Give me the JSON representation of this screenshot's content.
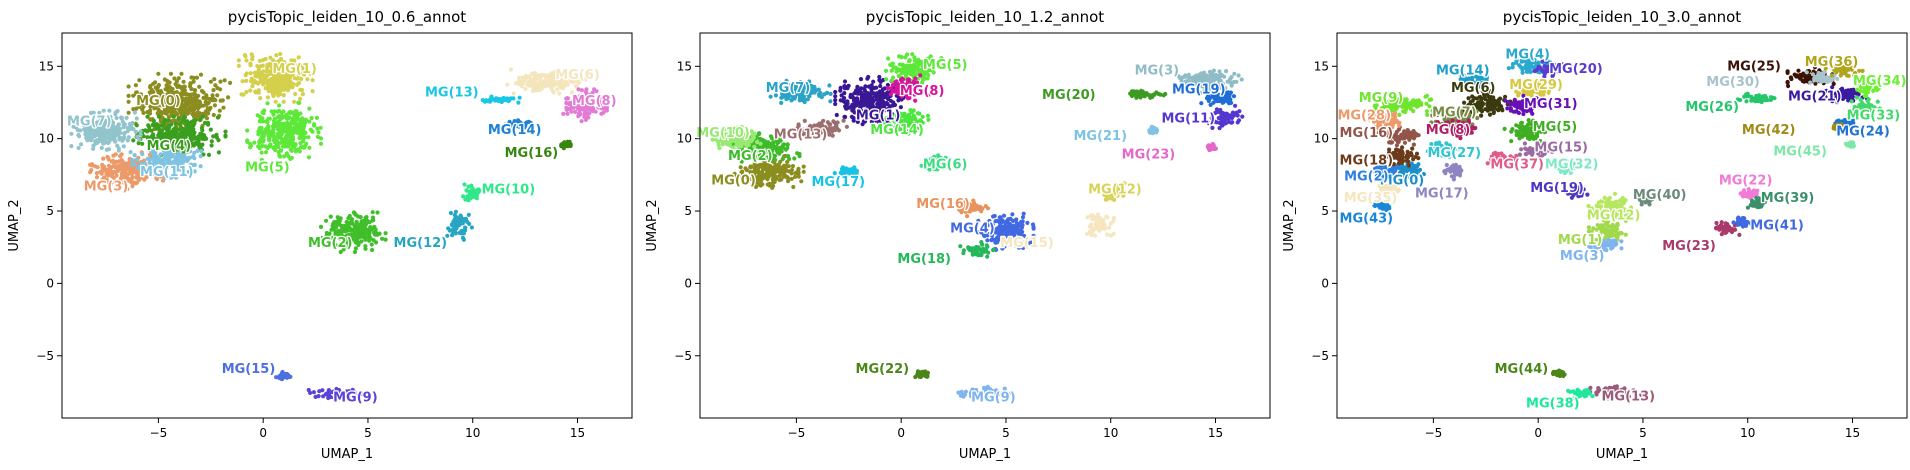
{
  "chart_data": [
    {
      "type": "scatter",
      "title": "pycisTopic_leiden_10_0.6_annot",
      "xlabel": "UMAP_1",
      "ylabel": "UMAP_2",
      "xlim": [
        -9.6,
        17.6
      ],
      "ylim": [
        -9.3,
        17.3
      ],
      "xticks": [
        -5,
        0,
        5,
        10,
        15
      ],
      "yticks": [
        -5,
        0,
        5,
        10,
        15
      ],
      "grid": false,
      "clusters": [
        {
          "name": "MG(0)",
          "x": -4.0,
          "y": 12.5,
          "rx": 2.2,
          "ry": 1.8,
          "color": "#8b8e1f",
          "lx": -5.0,
          "ly": 12.6
        },
        {
          "name": "MG(1)",
          "x": 0.6,
          "y": 14.2,
          "rx": 1.6,
          "ry": 1.5,
          "color": "#d4d04c",
          "lx": 1.5,
          "ly": 14.8
        },
        {
          "name": "MG(2)",
          "x": 4.3,
          "y": 3.6,
          "rx": 1.4,
          "ry": 1.3,
          "color": "#3fbf29",
          "lx": 3.2,
          "ly": 2.8
        },
        {
          "name": "MG(3)",
          "x": -6.5,
          "y": 7.8,
          "rx": 1.6,
          "ry": 1.2,
          "color": "#ec9a6a",
          "lx": -7.5,
          "ly": 6.7
        },
        {
          "name": "MG(4)",
          "x": -4.0,
          "y": 10.2,
          "rx": 2.0,
          "ry": 1.2,
          "color": "#3a9e1e",
          "lx": -4.5,
          "ly": 9.5
        },
        {
          "name": "MG(5)",
          "x": 1.0,
          "y": 10.5,
          "rx": 1.6,
          "ry": 1.8,
          "color": "#5de83a",
          "lx": 0.2,
          "ly": 8.0
        },
        {
          "name": "MG(6)",
          "x": 13.6,
          "y": 14.0,
          "rx": 1.8,
          "ry": 0.8,
          "color": "#f4e5bd",
          "lx": 15.0,
          "ly": 14.4
        },
        {
          "name": "MG(7)",
          "x": -7.5,
          "y": 10.5,
          "rx": 1.5,
          "ry": 1.3,
          "color": "#91c4cc",
          "lx": -8.3,
          "ly": 11.2
        },
        {
          "name": "MG(8)",
          "x": 15.3,
          "y": 12.3,
          "rx": 1.0,
          "ry": 1.0,
          "color": "#e27ad6",
          "lx": 15.8,
          "ly": 12.6
        },
        {
          "name": "MG(9)",
          "x": 3.6,
          "y": -7.6,
          "rx": 1.3,
          "ry": 0.35,
          "color": "#5b43d6",
          "lx": 4.4,
          "ly": -7.9
        },
        {
          "name": "MG(10)",
          "x": 10.0,
          "y": 6.3,
          "rx": 0.5,
          "ry": 0.6,
          "color": "#2ee88a",
          "lx": 11.7,
          "ly": 6.5
        },
        {
          "name": "MG(11)",
          "x": -4.6,
          "y": 8.4,
          "rx": 1.5,
          "ry": 1.0,
          "color": "#7ec3e2",
          "lx": -4.6,
          "ly": 7.7
        },
        {
          "name": "MG(12)",
          "x": 9.3,
          "y": 4.0,
          "rx": 0.6,
          "ry": 0.9,
          "color": "#27a6c4",
          "lx": 7.5,
          "ly": 2.8
        },
        {
          "name": "MG(13)",
          "x": 11.3,
          "y": 12.7,
          "rx": 1.1,
          "ry": 0.25,
          "color": "#1ac6e6",
          "lx": 9.0,
          "ly": 13.2
        },
        {
          "name": "MG(14)",
          "x": 12.2,
          "y": 11.0,
          "rx": 0.6,
          "ry": 0.25,
          "color": "#1d82d6",
          "lx": 12.0,
          "ly": 10.6
        },
        {
          "name": "MG(15)",
          "x": 1.0,
          "y": -6.4,
          "rx": 0.35,
          "ry": 0.25,
          "color": "#4d6fe0",
          "lx": -0.7,
          "ly": -5.9
        },
        {
          "name": "MG(16)",
          "x": 14.4,
          "y": 9.6,
          "rx": 0.25,
          "ry": 0.25,
          "color": "#37870f",
          "lx": 12.8,
          "ly": 9.0
        }
      ]
    },
    {
      "type": "scatter",
      "title": "pycisTopic_leiden_10_1.2_annot",
      "xlabel": "UMAP_1",
      "ylabel": "UMAP_2",
      "xlim": [
        -9.6,
        17.6
      ],
      "ylim": [
        -9.3,
        17.3
      ],
      "xticks": [
        -5,
        0,
        5,
        10,
        15
      ],
      "yticks": [
        -5,
        0,
        5,
        10,
        15
      ],
      "grid": false,
      "clusters": [
        {
          "name": "MG(0)",
          "x": -6.3,
          "y": 7.7,
          "rx": 1.5,
          "ry": 1.0,
          "color": "#8b8e1f",
          "lx": -8.0,
          "ly": 7.1
        },
        {
          "name": "MG(1)",
          "x": -1.5,
          "y": 12.5,
          "rx": 1.5,
          "ry": 1.6,
          "color": "#3a1795",
          "lx": -1.1,
          "ly": 11.6
        },
        {
          "name": "MG(2)",
          "x": -6.5,
          "y": 9.4,
          "rx": 1.5,
          "ry": 0.9,
          "color": "#3dbb2a",
          "lx": -7.2,
          "ly": 8.8
        },
        {
          "name": "MG(3)",
          "x": 14.6,
          "y": 14.0,
          "rx": 1.5,
          "ry": 0.8,
          "color": "#8fbcc6",
          "lx": 12.2,
          "ly": 14.7
        },
        {
          "name": "MG(4)",
          "x": 5.0,
          "y": 3.6,
          "rx": 1.2,
          "ry": 1.2,
          "color": "#4169e1",
          "lx": 3.4,
          "ly": 3.8
        },
        {
          "name": "MG(5)",
          "x": 0.6,
          "y": 14.8,
          "rx": 1.2,
          "ry": 1.0,
          "color": "#5de83a",
          "lx": 2.1,
          "ly": 15.1
        },
        {
          "name": "MG(6)",
          "x": 1.6,
          "y": 8.3,
          "rx": 0.6,
          "ry": 0.5,
          "color": "#3ddc84",
          "lx": 2.1,
          "ly": 8.2
        },
        {
          "name": "MG(7)",
          "x": -4.8,
          "y": 13.2,
          "rx": 1.3,
          "ry": 0.8,
          "color": "#2aa3c6",
          "lx": -5.4,
          "ly": 13.5
        },
        {
          "name": "MG(8)",
          "x": 0.3,
          "y": 13.5,
          "rx": 0.9,
          "ry": 0.8,
          "color": "#d6149e",
          "lx": 1.0,
          "ly": 13.3
        },
        {
          "name": "MG(9)",
          "x": 3.8,
          "y": -7.6,
          "rx": 1.3,
          "ry": 0.4,
          "color": "#80b4ee",
          "lx": 4.4,
          "ly": -7.9
        },
        {
          "name": "MG(10)",
          "x": -7.9,
          "y": 10.0,
          "rx": 1.1,
          "ry": 0.8,
          "color": "#96ea72",
          "lx": -8.5,
          "ly": 10.4
        },
        {
          "name": "MG(11)",
          "x": 15.4,
          "y": 11.5,
          "rx": 0.8,
          "ry": 0.7,
          "color": "#5537d0",
          "lx": 13.7,
          "ly": 11.4
        },
        {
          "name": "MG(12)",
          "x": 10.1,
          "y": 6.3,
          "rx": 0.5,
          "ry": 0.6,
          "color": "#d7d358",
          "lx": 10.2,
          "ly": 6.5
        },
        {
          "name": "MG(13)",
          "x": -3.8,
          "y": 10.7,
          "rx": 1.1,
          "ry": 0.6,
          "color": "#9d6e6e",
          "lx": -4.8,
          "ly": 10.3
        },
        {
          "name": "MG(14)",
          "x": 0.2,
          "y": 11.2,
          "rx": 1.0,
          "ry": 0.8,
          "color": "#4de63e",
          "lx": -0.2,
          "ly": 10.6
        },
        {
          "name": "MG(15)",
          "x": 9.5,
          "y": 4.0,
          "rx": 0.6,
          "ry": 0.9,
          "color": "#f5e6bf",
          "lx": 6.0,
          "ly": 2.8
        },
        {
          "name": "MG(16)",
          "x": 3.3,
          "y": 5.2,
          "rx": 0.8,
          "ry": 0.5,
          "color": "#e8935d",
          "lx": 2.0,
          "ly": 5.5
        },
        {
          "name": "MG(17)",
          "x": -2.5,
          "y": 7.7,
          "rx": 0.7,
          "ry": 0.4,
          "color": "#16c3e6",
          "lx": -3.0,
          "ly": 7.0
        },
        {
          "name": "MG(18)",
          "x": 3.7,
          "y": 2.3,
          "rx": 0.8,
          "ry": 0.5,
          "color": "#25b85a",
          "lx": 1.1,
          "ly": 1.7
        },
        {
          "name": "MG(19)",
          "x": 15.2,
          "y": 12.8,
          "rx": 0.8,
          "ry": 0.6,
          "color": "#1f6ed6",
          "lx": 14.2,
          "ly": 13.4
        },
        {
          "name": "MG(20)",
          "x": 11.5,
          "y": 13.1,
          "rx": 1.0,
          "ry": 0.25,
          "color": "#3d9b22",
          "lx": 8.0,
          "ly": 13.0
        },
        {
          "name": "MG(21)",
          "x": 12.0,
          "y": 10.6,
          "rx": 0.25,
          "ry": 0.2,
          "color": "#7ec3e2",
          "lx": 9.5,
          "ly": 10.2
        },
        {
          "name": "MG(22)",
          "x": 1.0,
          "y": -6.3,
          "rx": 0.3,
          "ry": 0.2,
          "color": "#4a8718",
          "lx": -0.9,
          "ly": -5.9
        },
        {
          "name": "MG(23)",
          "x": 14.8,
          "y": 9.4,
          "rx": 0.2,
          "ry": 0.2,
          "color": "#e468c9",
          "lx": 11.8,
          "ly": 8.9
        }
      ]
    },
    {
      "type": "scatter",
      "title": "pycisTopic_leiden_10_3.0_annot",
      "xlabel": "UMAP_1",
      "ylabel": "UMAP_2",
      "xlim": [
        -9.6,
        17.6
      ],
      "ylim": [
        -9.3,
        17.3
      ],
      "xticks": [
        -5,
        0,
        5,
        10,
        15
      ],
      "yticks": [
        -5,
        0,
        5,
        10,
        15
      ],
      "grid": false,
      "clusters": [
        {
          "name": "MG(0)",
          "x": -6.3,
          "y": 7.8,
          "rx": 0.9,
          "ry": 0.6,
          "color": "#1c8fc9",
          "lx": -6.5,
          "ly": 7.1
        },
        {
          "name": "MG(1)",
          "x": 3.3,
          "y": 3.6,
          "rx": 0.8,
          "ry": 0.7,
          "color": "#a1d94a",
          "lx": 2.0,
          "ly": 3.0
        },
        {
          "name": "MG(2)",
          "x": -7.4,
          "y": 7.7,
          "rx": 0.7,
          "ry": 0.5,
          "color": "#2f7fe0",
          "lx": -8.2,
          "ly": 7.4
        },
        {
          "name": "MG(3)",
          "x": 3.2,
          "y": 2.6,
          "rx": 0.7,
          "ry": 0.5,
          "color": "#7fb4ee",
          "lx": 2.1,
          "ly": 1.9
        },
        {
          "name": "MG(4)",
          "x": -0.3,
          "y": 15.0,
          "rx": 1.0,
          "ry": 0.6,
          "color": "#2aa9cf",
          "lx": -0.5,
          "ly": 15.8
        },
        {
          "name": "MG(5)",
          "x": -0.5,
          "y": 10.6,
          "rx": 1.0,
          "ry": 0.7,
          "color": "#3fae22",
          "lx": 0.8,
          "ly": 10.8
        },
        {
          "name": "MG(6)",
          "x": -2.5,
          "y": 12.4,
          "rx": 1.1,
          "ry": 0.8,
          "color": "#3b3a0e",
          "lx": -3.1,
          "ly": 13.5
        },
        {
          "name": "MG(7)",
          "x": -4.0,
          "y": 11.5,
          "rx": 1.0,
          "ry": 0.7,
          "color": "#7a8a45",
          "lx": -4.0,
          "ly": 11.8
        },
        {
          "name": "MG(8)",
          "x": -3.8,
          "y": 10.6,
          "rx": 0.9,
          "ry": 0.6,
          "color": "#b01e66",
          "lx": -4.3,
          "ly": 10.6
        },
        {
          "name": "MG(9)",
          "x": -6.5,
          "y": 12.3,
          "rx": 1.4,
          "ry": 0.6,
          "color": "#6fe52e",
          "lx": -7.5,
          "ly": 12.8
        },
        {
          "name": "MG(12)",
          "x": 3.5,
          "y": 5.3,
          "rx": 1.0,
          "ry": 0.8,
          "color": "#b7e760",
          "lx": 3.6,
          "ly": 4.7
        },
        {
          "name": "MG(13)",
          "x": 3.6,
          "y": -7.5,
          "rx": 1.2,
          "ry": 0.4,
          "color": "#9b5b7c",
          "lx": 4.3,
          "ly": -7.8
        },
        {
          "name": "MG(14)",
          "x": -3.0,
          "y": 14.0,
          "rx": 1.0,
          "ry": 0.5,
          "color": "#1e9fcc",
          "lx": -3.6,
          "ly": 14.7
        },
        {
          "name": "MG(15)",
          "x": -0.1,
          "y": 9.2,
          "rx": 0.7,
          "ry": 0.5,
          "color": "#9c6aa2",
          "lx": 1.1,
          "ly": 9.4
        },
        {
          "name": "MG(16)",
          "x": -6.5,
          "y": 10.2,
          "rx": 1.0,
          "ry": 0.6,
          "color": "#93554a",
          "lx": -8.2,
          "ly": 10.4
        },
        {
          "name": "MG(17)",
          "x": -4.0,
          "y": 7.8,
          "rx": 0.6,
          "ry": 0.6,
          "color": "#8f85c0",
          "lx": -4.6,
          "ly": 6.2
        },
        {
          "name": "MG(18)",
          "x": -6.6,
          "y": 8.8,
          "rx": 0.8,
          "ry": 0.6,
          "color": "#6b3b1b",
          "lx": -8.2,
          "ly": 8.5
        },
        {
          "name": "MG(19)",
          "x": 1.8,
          "y": 6.3,
          "rx": 0.5,
          "ry": 0.4,
          "color": "#4c37c2",
          "lx": 0.9,
          "ly": 6.6
        },
        {
          "name": "MG(20)",
          "x": 0.5,
          "y": 14.8,
          "rx": 0.6,
          "ry": 0.5,
          "color": "#5a3cd0",
          "lx": 1.8,
          "ly": 14.8
        },
        {
          "name": "MG(21)",
          "x": 14.7,
          "y": 13.0,
          "rx": 0.9,
          "ry": 0.6,
          "color": "#3a1aa0",
          "lx": 13.2,
          "ly": 12.9
        },
        {
          "name": "MG(22)",
          "x": 10.1,
          "y": 6.2,
          "rx": 0.4,
          "ry": 0.35,
          "color": "#f07ad6",
          "lx": 9.9,
          "ly": 7.1
        },
        {
          "name": "MG(23)",
          "x": 9.0,
          "y": 3.8,
          "rx": 0.6,
          "ry": 0.5,
          "color": "#a83a6c",
          "lx": 7.2,
          "ly": 2.6
        },
        {
          "name": "MG(24)",
          "x": 14.6,
          "y": 11.0,
          "rx": 0.5,
          "ry": 0.4,
          "color": "#1f73d2",
          "lx": 15.5,
          "ly": 10.5
        },
        {
          "name": "MG(25)",
          "x": 13.0,
          "y": 14.3,
          "rx": 1.0,
          "ry": 0.6,
          "color": "#3b1205",
          "lx": 10.3,
          "ly": 15.0
        },
        {
          "name": "MG(26)",
          "x": 10.5,
          "y": 12.8,
          "rx": 0.9,
          "ry": 0.3,
          "color": "#25c66a",
          "lx": 8.3,
          "ly": 12.2
        },
        {
          "name": "MG(27)",
          "x": -4.5,
          "y": 9.3,
          "rx": 0.8,
          "ry": 0.5,
          "color": "#2ec4d2",
          "lx": -4.0,
          "ly": 9.0
        },
        {
          "name": "MG(28)",
          "x": -7.3,
          "y": 11.2,
          "rx": 0.9,
          "ry": 0.6,
          "color": "#ec9a6a",
          "lx": -8.3,
          "ly": 11.6
        },
        {
          "name": "MG(29)",
          "x": -0.3,
          "y": 13.4,
          "rx": 0.8,
          "ry": 0.6,
          "color": "#d6c840",
          "lx": -0.1,
          "ly": 13.7
        },
        {
          "name": "MG(30)",
          "x": 13.6,
          "y": 14.2,
          "rx": 0.8,
          "ry": 0.5,
          "color": "#a7c4cc",
          "lx": 9.3,
          "ly": 13.9
        },
        {
          "name": "MG(31)",
          "x": -0.7,
          "y": 12.3,
          "rx": 0.8,
          "ry": 0.6,
          "color": "#6810b8",
          "lx": 0.6,
          "ly": 12.4
        },
        {
          "name": "MG(32)",
          "x": 1.4,
          "y": 8.0,
          "rx": 0.5,
          "ry": 0.4,
          "color": "#7fe8c4",
          "lx": 1.6,
          "ly": 8.2
        },
        {
          "name": "MG(33)",
          "x": 15.6,
          "y": 12.2,
          "rx": 0.7,
          "ry": 0.6,
          "color": "#42d96a",
          "lx": 16.0,
          "ly": 11.6
        },
        {
          "name": "MG(34)",
          "x": 15.7,
          "y": 13.5,
          "rx": 0.6,
          "ry": 0.6,
          "color": "#6cf030",
          "lx": 16.3,
          "ly": 14.0
        },
        {
          "name": "MG(35)",
          "x": -7.2,
          "y": 6.5,
          "rx": 0.6,
          "ry": 0.4,
          "color": "#f5e6bf",
          "lx": -8.0,
          "ly": 5.9
        },
        {
          "name": "MG(36)",
          "x": 14.6,
          "y": 14.8,
          "rx": 0.8,
          "ry": 0.5,
          "color": "#b0a51c",
          "lx": 14.0,
          "ly": 15.3
        },
        {
          "name": "MG(37)",
          "x": -1.8,
          "y": 8.6,
          "rx": 0.7,
          "ry": 0.5,
          "color": "#e05b8a",
          "lx": -1.0,
          "ly": 8.2
        },
        {
          "name": "MG(38)",
          "x": 2.0,
          "y": -7.6,
          "rx": 0.6,
          "ry": 0.3,
          "color": "#1fe89a",
          "lx": 0.7,
          "ly": -8.3
        },
        {
          "name": "MG(39)",
          "x": 10.5,
          "y": 5.5,
          "rx": 0.5,
          "ry": 0.4,
          "color": "#3b8f6a",
          "lx": 11.9,
          "ly": 5.9
        },
        {
          "name": "MG(40)",
          "x": 5.1,
          "y": 5.9,
          "rx": 0.5,
          "ry": 0.4,
          "color": "#6a8a7a",
          "lx": 5.8,
          "ly": 6.1
        },
        {
          "name": "MG(41)",
          "x": 9.8,
          "y": 4.2,
          "rx": 0.5,
          "ry": 0.4,
          "color": "#4169e1",
          "lx": 11.4,
          "ly": 4.0
        },
        {
          "name": "MG(42)",
          "x": 14.3,
          "y": 10.8,
          "rx": 0.3,
          "ry": 0.2,
          "color": "#a08a16",
          "lx": 11.0,
          "ly": 10.6
        },
        {
          "name": "MG(43)",
          "x": -7.4,
          "y": 5.4,
          "rx": 0.4,
          "ry": 0.3,
          "color": "#1a86d8",
          "lx": -8.2,
          "ly": 4.5
        },
        {
          "name": "MG(44)",
          "x": 1.0,
          "y": -6.2,
          "rx": 0.3,
          "ry": 0.2,
          "color": "#4a8718",
          "lx": -0.8,
          "ly": -5.9
        },
        {
          "name": "MG(45)",
          "x": 14.9,
          "y": 9.6,
          "rx": 0.2,
          "ry": 0.2,
          "color": "#7de8a6",
          "lx": 12.5,
          "ly": 9.1
        }
      ]
    }
  ]
}
